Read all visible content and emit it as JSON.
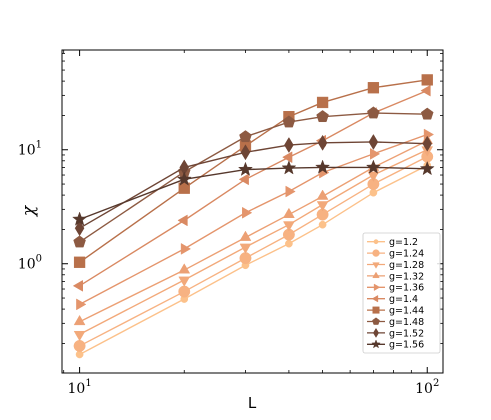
{
  "chart_data": {
    "type": "line",
    "title": "",
    "xlabel": "L",
    "ylabel": "χ",
    "xscale": "log",
    "yscale": "log",
    "xlim": [
      8.9,
      111
    ],
    "ylim": [
      0.11,
      75
    ],
    "grid": false,
    "legend_position": "bottom-right",
    "x_ticks": [
      {
        "value": 10,
        "base": "10",
        "exp": "1"
      },
      {
        "value": 100,
        "base": "10",
        "exp": "2"
      }
    ],
    "y_ticks": [
      {
        "value": 1,
        "base": "10",
        "exp": "0"
      },
      {
        "value": 10,
        "base": "10",
        "exp": "1"
      }
    ],
    "x": [
      10,
      20,
      30,
      40,
      50,
      70,
      100
    ],
    "series": [
      {
        "name": "g=1.2",
        "marker": "circle",
        "color": "#fcc18a",
        "values": [
          0.16,
          0.49,
          0.97,
          1.5,
          2.2,
          4.2,
          7.3
        ]
      },
      {
        "name": "g=1.24",
        "marker": "big-circle",
        "color": "#f7b282",
        "values": [
          0.19,
          0.57,
          1.12,
          1.8,
          2.7,
          5.0,
          8.7
        ]
      },
      {
        "name": "g=1.28",
        "marker": "triangle-down",
        "color": "#f2a97a",
        "values": [
          0.24,
          0.72,
          1.4,
          2.2,
          3.3,
          6.0,
          10.0
        ]
      },
      {
        "name": "g=1.32",
        "marker": "triangle-up",
        "color": "#eca074",
        "values": [
          0.31,
          0.88,
          1.7,
          2.7,
          3.9,
          7.0,
          12.0
        ]
      },
      {
        "name": "g=1.36",
        "marker": "triangle-right",
        "color": "#e4956c",
        "values": [
          0.44,
          1.35,
          2.8,
          4.3,
          6.3,
          9.2,
          13.6
        ]
      },
      {
        "name": "g=1.4",
        "marker": "triangle-left",
        "color": "#d98962",
        "values": [
          0.64,
          2.4,
          5.5,
          8.6,
          12.0,
          21.0,
          33.0
        ]
      },
      {
        "name": "g=1.44",
        "marker": "square",
        "color": "#b8704a",
        "values": [
          1.03,
          4.6,
          10.8,
          19.5,
          26.0,
          35.0,
          41.0
        ]
      },
      {
        "name": "g=1.48",
        "marker": "pentagon",
        "color": "#8d5a42",
        "values": [
          1.55,
          6.4,
          13.0,
          17.5,
          19.5,
          21.0,
          20.5
        ]
      },
      {
        "name": "g=1.52",
        "marker": "diamond",
        "color": "#6e4535",
        "values": [
          2.05,
          7.0,
          9.5,
          11.0,
          11.5,
          11.7,
          11.3
        ]
      },
      {
        "name": "g=1.56",
        "marker": "star",
        "color": "#56382c",
        "values": [
          2.45,
          5.5,
          6.7,
          6.9,
          7.0,
          7.0,
          6.8
        ]
      }
    ]
  }
}
